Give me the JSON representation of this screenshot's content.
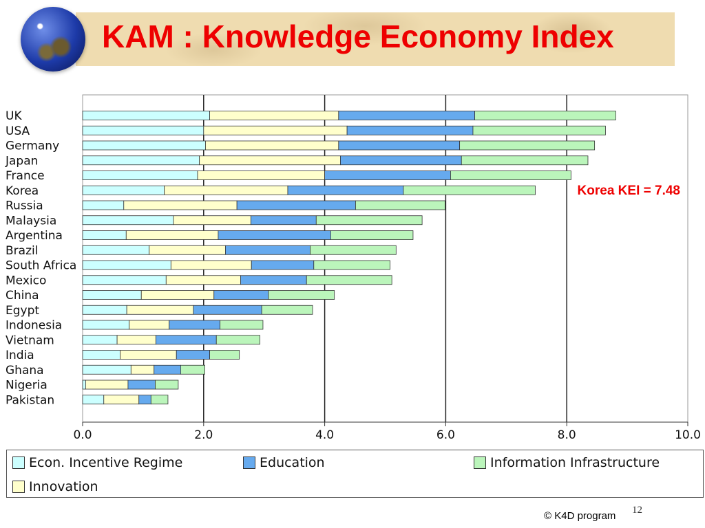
{
  "slide": {
    "title": "KAM : Knowledge Economy Index",
    "annotation": "Korea KEI = 7.48",
    "copyright": "© K4D program",
    "page_number": "12"
  },
  "chart_data": {
    "type": "bar",
    "orientation": "horizontal",
    "stacked": true,
    "title": "",
    "xlabel": "",
    "ylabel": "",
    "xlim": [
      0,
      10
    ],
    "x_ticks": [
      "0.0",
      "2.0",
      "4.0",
      "6.0",
      "8.0",
      "10.0"
    ],
    "grid": true,
    "legend": "bottom",
    "categories": [
      "UK",
      "USA",
      "Germany",
      "Japan",
      "France",
      "Korea",
      "Russia",
      "Malaysia",
      "Argentina",
      "Brazil",
      "South Africa",
      "Mexico",
      "China",
      "Egypt",
      "Indonesia",
      "Vietnam",
      "India",
      "Ghana",
      "Nigeria",
      "Pakistan"
    ],
    "series": [
      {
        "name": "Econ. Incentive Regime",
        "color": "#ccffff",
        "values": [
          2.1,
          2.0,
          2.03,
          1.93,
          1.9,
          1.35,
          0.68,
          1.5,
          0.72,
          1.1,
          1.46,
          1.38,
          0.97,
          0.73,
          0.77,
          0.57,
          0.62,
          0.8,
          0.05,
          0.35
        ]
      },
      {
        "name": "Innovation",
        "color": "#ffffcc",
        "values": [
          2.13,
          2.37,
          2.2,
          2.33,
          2.1,
          2.04,
          1.87,
          1.28,
          1.52,
          1.26,
          1.33,
          1.23,
          1.2,
          1.1,
          0.66,
          0.64,
          0.93,
          0.38,
          0.7,
          0.58
        ]
      },
      {
        "name": "Education",
        "color": "#66aaee",
        "values": [
          2.25,
          2.08,
          2.0,
          2.0,
          2.08,
          1.91,
          1.96,
          1.08,
          1.86,
          1.4,
          1.03,
          1.09,
          0.9,
          1.13,
          0.84,
          1.0,
          0.55,
          0.44,
          0.45,
          0.2
        ]
      },
      {
        "name": "Information Infrastructure",
        "color": "#bbf5bb",
        "values": [
          2.33,
          2.19,
          2.23,
          2.09,
          1.99,
          2.18,
          1.48,
          1.75,
          1.36,
          1.42,
          1.26,
          1.41,
          1.09,
          0.84,
          0.71,
          0.72,
          0.49,
          0.4,
          0.38,
          0.28
        ]
      }
    ]
  }
}
